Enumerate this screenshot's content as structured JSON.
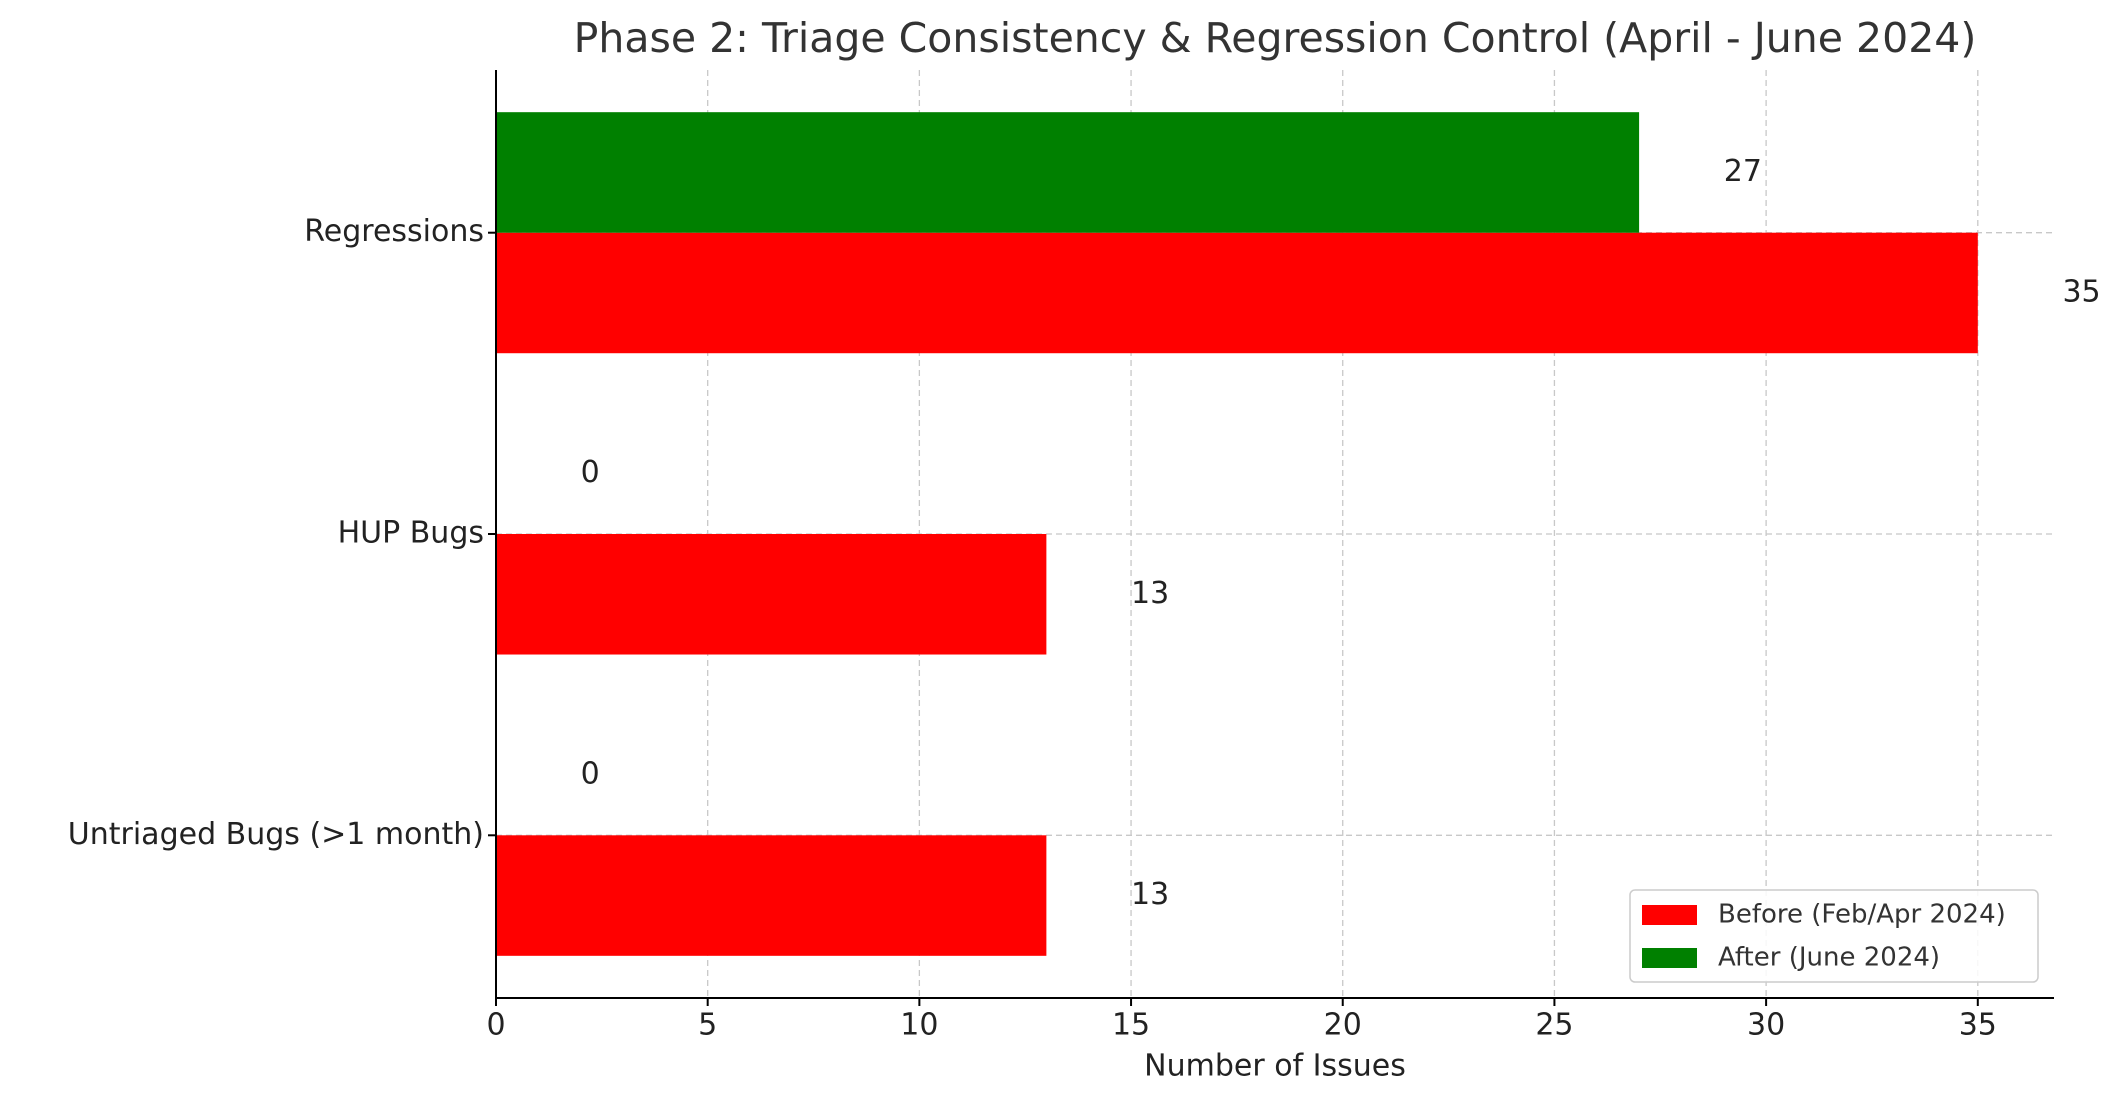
{
  "chart_data": {
    "type": "bar",
    "orientation": "horizontal",
    "title": "Phase 2: Triage Consistency & Regression Control (April - June 2024)",
    "xlabel": "Number of Issues",
    "categories": [
      "Regressions",
      "HUP Bugs",
      "Untriaged Bugs (>1 month)"
    ],
    "series": [
      {
        "name": "Before (Feb/Apr 2024)",
        "color": "#ff0000",
        "values": [
          35,
          13,
          13
        ]
      },
      {
        "name": "After (June 2024)",
        "color": "#008000",
        "values": [
          27,
          0,
          0
        ]
      }
    ],
    "xlim": [
      0,
      36.8
    ],
    "xticks": [
      0,
      5,
      10,
      15,
      20,
      25,
      30,
      35
    ],
    "grid": true,
    "legend": "lower right"
  }
}
